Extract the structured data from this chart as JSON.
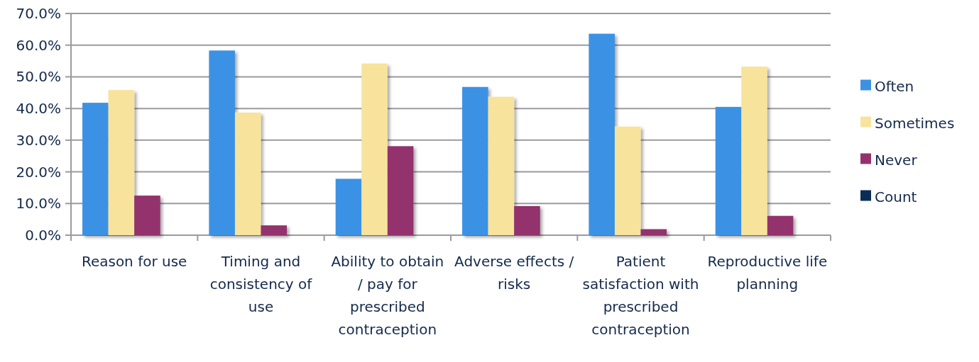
{
  "chart_data": {
    "type": "bar",
    "categories": [
      "Reason for use",
      "Timing and consistency of use",
      "Ability to obtain / pay for prescribed contraception",
      "Adverse effects / risks",
      "Patient satisfaction with prescribed contraception",
      "Reproductive life planning"
    ],
    "series": [
      {
        "name": "Often",
        "color": "#3b92e4",
        "values": [
          41.8,
          58.3,
          17.8,
          46.8,
          63.6,
          40.5
        ]
      },
      {
        "name": "Sometimes",
        "color": "#f7e39c",
        "values": [
          45.8,
          38.7,
          54.2,
          43.7,
          34.3,
          53.2
        ]
      },
      {
        "name": "Never",
        "color": "#93336d",
        "values": [
          12.5,
          3.1,
          28.1,
          9.2,
          1.9,
          6.1
        ]
      },
      {
        "name": "Count",
        "color": "#0b2c55",
        "values": [
          null,
          null,
          null,
          null,
          null,
          null
        ]
      }
    ],
    "ylim": [
      0,
      70
    ],
    "yticks": [
      {
        "value": 0,
        "label": "0.0%"
      },
      {
        "value": 10,
        "label": "10.0%"
      },
      {
        "value": 20,
        "label": "20.0%"
      },
      {
        "value": 30,
        "label": "30.0%"
      },
      {
        "value": 40,
        "label": "40.0%"
      },
      {
        "value": 50,
        "label": "50.0%"
      },
      {
        "value": 60,
        "label": "60.0%"
      },
      {
        "value": 70,
        "label": "70.0%"
      }
    ],
    "grid": "y",
    "legend": "right"
  }
}
